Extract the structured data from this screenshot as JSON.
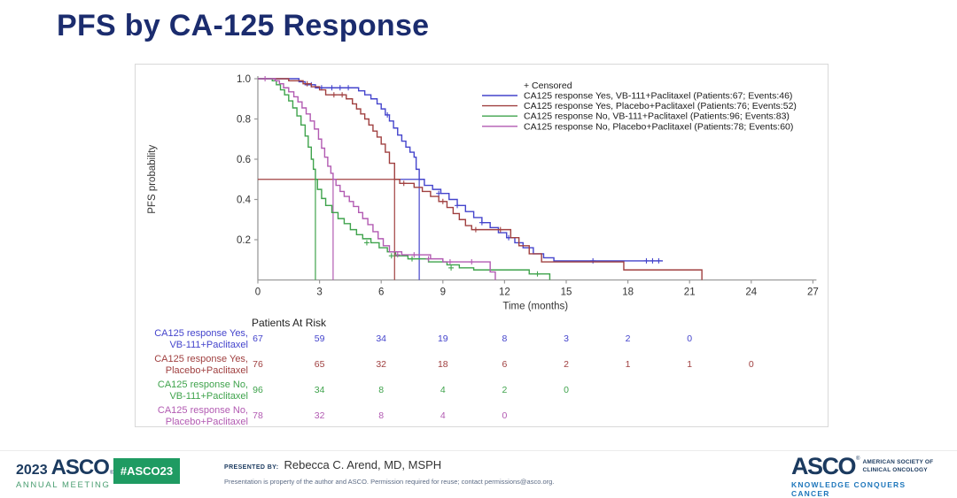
{
  "slide": {
    "title": "PFS by CA-125 Response"
  },
  "footer": {
    "year": "2023",
    "asco": "ASCO",
    "asco_reg": "®",
    "annual_meeting": "ANNUAL MEETING",
    "hashtag": "#ASCO23",
    "presented_by_label": "PRESENTED BY:",
    "presenter": "Rebecca C. Arend, MD, MSPH",
    "disclaimer": "Presentation is property of the author and ASCO. Permission required for reuse; contact permissions@asco.org.",
    "asco_logo": "ASCO",
    "asco_society": "AMERICAN SOCIETY OF CLINICAL ONCOLOGY",
    "asco_tagline": "KNOWLEDGE CONQUERS CANCER"
  },
  "chart_data": {
    "type": "line",
    "subtype": "kaplan-meier-step",
    "title": "",
    "xlabel": "Time (months)",
    "ylabel": "PFS probability",
    "xlim": [
      0,
      27
    ],
    "xticks": [
      0,
      3,
      6,
      9,
      12,
      15,
      18,
      21,
      24,
      27
    ],
    "ylim": [
      0,
      1.0
    ],
    "yticks": [
      1.0,
      0.8,
      0.6,
      0.4,
      0.2
    ],
    "grid": false,
    "legend_position": "top-right-inside",
    "censored_label": "+ Censored",
    "reference_level": 0.5,
    "axis_color": "#9a9a9a",
    "text_color": "#333333",
    "series": [
      {
        "label": "CA125 response Yes, VB-111+Paclitaxel (Patients:67; Events:46)",
        "color": "#4444cc",
        "median_months": 7.85,
        "steps": [
          [
            0,
            1.0
          ],
          [
            2.0,
            0.985
          ],
          [
            2.3,
            0.97
          ],
          [
            2.8,
            0.955
          ],
          [
            4.9,
            0.94
          ],
          [
            5.2,
            0.92
          ],
          [
            5.5,
            0.9
          ],
          [
            5.8,
            0.875
          ],
          [
            6.0,
            0.85
          ],
          [
            6.2,
            0.82
          ],
          [
            6.4,
            0.79
          ],
          [
            6.6,
            0.755
          ],
          [
            6.8,
            0.72
          ],
          [
            7.0,
            0.69
          ],
          [
            7.2,
            0.66
          ],
          [
            7.4,
            0.635
          ],
          [
            7.6,
            0.61
          ],
          [
            7.7,
            0.55
          ],
          [
            7.85,
            0.5
          ],
          [
            8.1,
            0.47
          ],
          [
            8.5,
            0.45
          ],
          [
            8.9,
            0.43
          ],
          [
            9.3,
            0.4
          ],
          [
            9.7,
            0.37
          ],
          [
            10.1,
            0.34
          ],
          [
            10.5,
            0.31
          ],
          [
            10.9,
            0.285
          ],
          [
            11.3,
            0.26
          ],
          [
            11.7,
            0.235
          ],
          [
            12.1,
            0.21
          ],
          [
            12.5,
            0.185
          ],
          [
            12.9,
            0.16
          ],
          [
            13.4,
            0.13
          ],
          [
            13.9,
            0.11
          ],
          [
            14.4,
            0.095
          ]
        ],
        "end_time": 19.7,
        "drops_to_zero": false,
        "censors": [
          [
            2.6,
            0.97
          ],
          [
            3.1,
            0.955
          ],
          [
            3.6,
            0.955
          ],
          [
            4.0,
            0.955
          ],
          [
            4.4,
            0.955
          ],
          [
            6.3,
            0.82
          ],
          [
            8.8,
            0.43
          ],
          [
            9.7,
            0.37
          ],
          [
            10.9,
            0.285
          ],
          [
            12.2,
            0.21
          ],
          [
            16.3,
            0.095
          ],
          [
            18.9,
            0.095
          ],
          [
            19.2,
            0.095
          ],
          [
            19.5,
            0.095
          ]
        ]
      },
      {
        "label": "CA125 response Yes, Placebo+Paclitaxel (Patients:76; Events:52)",
        "color": "#a04040",
        "median_months": 6.65,
        "steps": [
          [
            0,
            1.0
          ],
          [
            1.5,
            0.99
          ],
          [
            2.2,
            0.975
          ],
          [
            2.6,
            0.96
          ],
          [
            3.0,
            0.945
          ],
          [
            3.3,
            0.92
          ],
          [
            4.3,
            0.9
          ],
          [
            4.6,
            0.875
          ],
          [
            4.8,
            0.85
          ],
          [
            5.0,
            0.825
          ],
          [
            5.2,
            0.8
          ],
          [
            5.4,
            0.77
          ],
          [
            5.6,
            0.74
          ],
          [
            5.8,
            0.71
          ],
          [
            6.0,
            0.675
          ],
          [
            6.2,
            0.635
          ],
          [
            6.4,
            0.58
          ],
          [
            6.65,
            0.5
          ],
          [
            6.9,
            0.48
          ],
          [
            7.6,
            0.46
          ],
          [
            8.0,
            0.44
          ],
          [
            8.4,
            0.415
          ],
          [
            8.8,
            0.39
          ],
          [
            9.2,
            0.36
          ],
          [
            9.5,
            0.33
          ],
          [
            9.8,
            0.3
          ],
          [
            10.1,
            0.27
          ],
          [
            10.4,
            0.25
          ],
          [
            12.3,
            0.21
          ],
          [
            12.7,
            0.17
          ],
          [
            13.2,
            0.13
          ],
          [
            13.8,
            0.09
          ],
          [
            17.8,
            0.05
          ]
        ],
        "end_time": 21.6,
        "drops_to_zero": true,
        "censors": [
          [
            2.4,
            0.975
          ],
          [
            3.7,
            0.92
          ],
          [
            4.1,
            0.92
          ],
          [
            7.1,
            0.48
          ],
          [
            9.0,
            0.39
          ],
          [
            10.6,
            0.25
          ],
          [
            11.8,
            0.25
          ]
        ]
      },
      {
        "label": "CA125 response No, VB-111+Paclitaxel (Patients:96; Events:83)",
        "color": "#3fa34c",
        "median_months": 2.8,
        "steps": [
          [
            0,
            1.0
          ],
          [
            0.7,
            0.99
          ],
          [
            0.9,
            0.97
          ],
          [
            1.1,
            0.945
          ],
          [
            1.3,
            0.92
          ],
          [
            1.5,
            0.89
          ],
          [
            1.7,
            0.855
          ],
          [
            1.9,
            0.815
          ],
          [
            2.1,
            0.77
          ],
          [
            2.3,
            0.715
          ],
          [
            2.45,
            0.66
          ],
          [
            2.6,
            0.6
          ],
          [
            2.7,
            0.55
          ],
          [
            2.8,
            0.5
          ],
          [
            2.9,
            0.45
          ],
          [
            3.1,
            0.405
          ],
          [
            3.3,
            0.37
          ],
          [
            3.6,
            0.335
          ],
          [
            3.9,
            0.305
          ],
          [
            4.2,
            0.28
          ],
          [
            4.5,
            0.25
          ],
          [
            4.8,
            0.225
          ],
          [
            5.1,
            0.205
          ],
          [
            5.5,
            0.185
          ],
          [
            5.9,
            0.16
          ],
          [
            6.3,
            0.14
          ],
          [
            6.7,
            0.12
          ],
          [
            7.3,
            0.105
          ],
          [
            8.3,
            0.09
          ],
          [
            9.2,
            0.075
          ],
          [
            9.8,
            0.06
          ],
          [
            10.5,
            0.05
          ],
          [
            13.2,
            0.03
          ]
        ],
        "end_time": 14.2,
        "drops_to_zero": true,
        "censors": [
          [
            5.3,
            0.185
          ],
          [
            6.5,
            0.12
          ],
          [
            7.5,
            0.105
          ],
          [
            9.4,
            0.06
          ],
          [
            13.6,
            0.03
          ]
        ]
      },
      {
        "label": "CA125 response No, Placebo+Paclitaxel (Patients:78; Events:60)",
        "color": "#b25ab2",
        "median_months": 3.66,
        "steps": [
          [
            0,
            1.0
          ],
          [
            0.85,
            0.99
          ],
          [
            1.05,
            0.975
          ],
          [
            1.25,
            0.955
          ],
          [
            1.5,
            0.935
          ],
          [
            1.75,
            0.91
          ],
          [
            1.95,
            0.885
          ],
          [
            2.15,
            0.855
          ],
          [
            2.35,
            0.825
          ],
          [
            2.55,
            0.79
          ],
          [
            2.75,
            0.75
          ],
          [
            2.95,
            0.7
          ],
          [
            3.1,
            0.655
          ],
          [
            3.25,
            0.61
          ],
          [
            3.4,
            0.565
          ],
          [
            3.55,
            0.53
          ],
          [
            3.66,
            0.5
          ],
          [
            3.8,
            0.47
          ],
          [
            4.0,
            0.44
          ],
          [
            4.2,
            0.415
          ],
          [
            4.45,
            0.39
          ],
          [
            4.65,
            0.365
          ],
          [
            4.9,
            0.335
          ],
          [
            5.1,
            0.305
          ],
          [
            5.35,
            0.275
          ],
          [
            5.6,
            0.24
          ],
          [
            5.85,
            0.205
          ],
          [
            6.1,
            0.17
          ],
          [
            6.4,
            0.14
          ],
          [
            7.0,
            0.125
          ],
          [
            8.4,
            0.105
          ],
          [
            9.0,
            0.09
          ],
          [
            11.3,
            0.04
          ]
        ],
        "end_time": 11.55,
        "drops_to_zero": true,
        "censors": [
          [
            0.35,
            1.0
          ],
          [
            6.8,
            0.125
          ],
          [
            7.6,
            0.125
          ],
          [
            8.3,
            0.105
          ],
          [
            9.35,
            0.09
          ],
          [
            10.4,
            0.09
          ]
        ]
      }
    ],
    "at_risk": {
      "title": "Patients At Risk",
      "times": [
        0,
        3,
        6,
        9,
        12,
        15,
        18,
        21,
        24
      ],
      "rows": [
        {
          "label_lines": [
            "CA125 response Yes,",
            "VB-111+Paclitaxel"
          ],
          "color": "#4444cc",
          "counts": [
            67,
            59,
            34,
            19,
            8,
            3,
            2,
            0
          ]
        },
        {
          "label_lines": [
            "CA125 response Yes,",
            "Placebo+Paclitaxel"
          ],
          "color": "#a04040",
          "counts": [
            76,
            65,
            32,
            18,
            6,
            2,
            1,
            1,
            0
          ]
        },
        {
          "label_lines": [
            "CA125 response No,",
            "VB-111+Paclitaxel"
          ],
          "color": "#3fa34c",
          "counts": [
            96,
            34,
            8,
            4,
            2,
            0
          ]
        },
        {
          "label_lines": [
            "CA125 response No,",
            "Placebo+Paclitaxel"
          ],
          "color": "#b25ab2",
          "counts": [
            78,
            32,
            8,
            4,
            0
          ]
        }
      ]
    }
  }
}
